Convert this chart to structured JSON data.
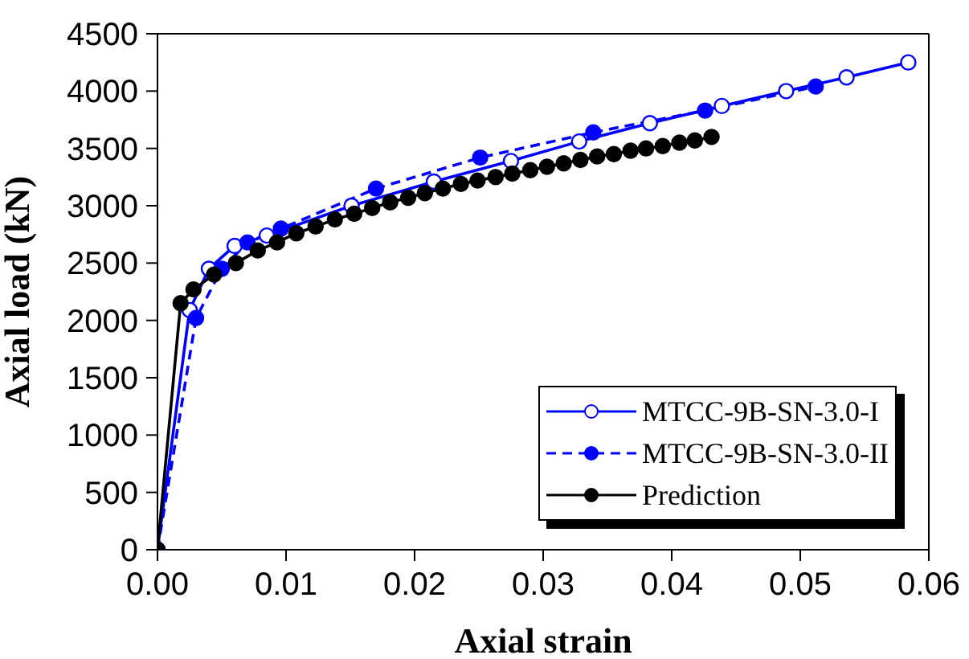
{
  "chart_data": {
    "type": "line",
    "xlabel": "Axial strain",
    "ylabel": "Axial load (kN)",
    "xlim": [
      0,
      0.06
    ],
    "xticks": [
      {
        "value": 0,
        "label": "0.00"
      },
      0.01,
      0.02,
      0.03,
      0.04,
      0.05,
      0.06
    ],
    "ylim": [
      0,
      4500
    ],
    "yticks": [
      0,
      500,
      1000,
      1500,
      2000,
      2500,
      3000,
      3500,
      4000,
      4500
    ],
    "legend": "bottom right",
    "marker": "circle",
    "series": [
      {
        "name": "MTCC-9B-SN-3.0-I",
        "color": "#0000ff",
        "line_style": "solid",
        "x": [
          0,
          0.0025,
          0.004,
          0.006,
          0.0085,
          0.0151,
          0.0215,
          0.0275,
          0.0328,
          0.0383,
          0.0439,
          0.0489,
          0.0536,
          0.0584
        ],
        "values": [
          0,
          2090,
          2450,
          2650,
          2740,
          3000,
          3210,
          3390,
          3560,
          3720,
          3870,
          4000,
          4120,
          4250
        ]
      },
      {
        "name": "MTCC-9B-SN-3.0-II",
        "color": "#0000ff",
        "line_style": "dashed",
        "x": [
          0,
          0.003,
          0.005,
          0.007,
          0.0096,
          0.017,
          0.0251,
          0.0339,
          0.0426,
          0.0512
        ],
        "values": [
          0,
          2020,
          2450,
          2680,
          2800,
          3150,
          3420,
          3640,
          3830,
          4040
        ]
      },
      {
        "name": "Prediction",
        "color": "#000000",
        "line_style": "solid",
        "x": [
          0,
          0.0018,
          0.0028,
          0.0044,
          0.0061,
          0.0078,
          0.0093,
          0.0108,
          0.0123,
          0.0138,
          0.0153,
          0.0167,
          0.0181,
          0.0195,
          0.0208,
          0.0222,
          0.0236,
          0.0249,
          0.0263,
          0.0276,
          0.029,
          0.0303,
          0.0316,
          0.0329,
          0.0342,
          0.0355,
          0.0368,
          0.038,
          0.0393,
          0.0406,
          0.0418,
          0.0431
        ],
        "values": [
          0,
          2150,
          2270,
          2400,
          2500,
          2610,
          2680,
          2760,
          2820,
          2880,
          2930,
          2980,
          3030,
          3070,
          3110,
          3150,
          3190,
          3220,
          3250,
          3280,
          3310,
          3340,
          3370,
          3400,
          3430,
          3450,
          3480,
          3500,
          3520,
          3550,
          3570,
          3600
        ]
      }
    ]
  }
}
